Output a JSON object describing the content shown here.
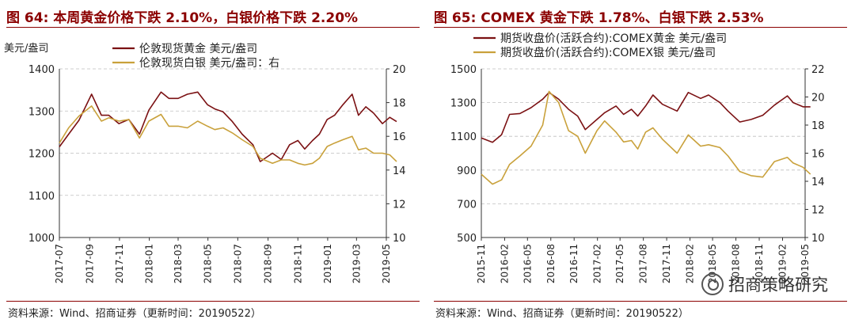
{
  "left": {
    "title": "图 64: 本周黄金价格下跌 2.10%，白银价格下跌 2.20%",
    "source": "资料来源：Wind、招商证券（更新时间：20190522）",
    "chart_data": {
      "type": "line",
      "ylabel_left": "美元/盎司",
      "yleft_range": [
        1000,
        1400
      ],
      "yleft_ticks": [
        "1000",
        "1100",
        "1200",
        "1300",
        "1400"
      ],
      "yright_range": [
        10,
        20
      ],
      "yright_ticks": [
        "10",
        "12",
        "14",
        "16",
        "18",
        "20"
      ],
      "x_ticks": [
        "2017-07",
        "2017-09",
        "2017-11",
        "2018-01",
        "2018-03",
        "2018-05",
        "2018-07",
        "2018-09",
        "2018-11",
        "2019-01",
        "2019-03",
        "2019-05"
      ],
      "x_range": [
        "2017-07",
        "2019-05"
      ],
      "grid": "horizontal-dashed",
      "legend_position": "top-center",
      "colors": {
        "gold": "#7B1113",
        "silver": "#C9A13B"
      },
      "series": [
        {
          "name": "伦敦现货黄金  美元/盎司",
          "axis": "left",
          "color": "#7B1113",
          "x": [
            "2017-07-01",
            "2017-07-20",
            "2017-08-10",
            "2017-09-05",
            "2017-09-25",
            "2017-10-10",
            "2017-10-31",
            "2017-11-20",
            "2017-12-12",
            "2017-12-31",
            "2018-01-25",
            "2018-02-10",
            "2018-03-01",
            "2018-03-20",
            "2018-04-10",
            "2018-04-30",
            "2018-05-15",
            "2018-06-01",
            "2018-06-20",
            "2018-07-10",
            "2018-08-01",
            "2018-08-16",
            "2018-09-10",
            "2018-09-28",
            "2018-10-15",
            "2018-11-01",
            "2018-11-15",
            "2018-12-01",
            "2018-12-15",
            "2018-12-31",
            "2019-01-15",
            "2019-02-01",
            "2019-02-20",
            "2019-03-05",
            "2019-03-20",
            "2019-04-05",
            "2019-04-23",
            "2019-05-08",
            "2019-05-22"
          ],
          "values": [
            1215,
            1245,
            1278,
            1340,
            1290,
            1290,
            1270,
            1280,
            1245,
            1302,
            1345,
            1330,
            1330,
            1340,
            1345,
            1315,
            1305,
            1298,
            1275,
            1245,
            1220,
            1180,
            1200,
            1185,
            1220,
            1230,
            1210,
            1230,
            1245,
            1280,
            1290,
            1315,
            1340,
            1290,
            1310,
            1295,
            1270,
            1285,
            1275
          ]
        },
        {
          "name": "伦敦现货白银  美元/盎司：右",
          "axis": "right",
          "color": "#C9A13B",
          "x": [
            "2017-07-01",
            "2017-07-20",
            "2017-08-10",
            "2017-09-05",
            "2017-09-25",
            "2017-10-10",
            "2017-10-31",
            "2017-11-20",
            "2017-12-12",
            "2017-12-31",
            "2018-01-25",
            "2018-02-10",
            "2018-03-01",
            "2018-03-20",
            "2018-04-10",
            "2018-04-30",
            "2018-05-15",
            "2018-06-01",
            "2018-06-20",
            "2018-07-10",
            "2018-08-01",
            "2018-08-16",
            "2018-09-10",
            "2018-09-28",
            "2018-10-15",
            "2018-11-01",
            "2018-11-15",
            "2018-12-01",
            "2018-12-15",
            "2018-12-31",
            "2019-01-15",
            "2019-02-01",
            "2019-02-20",
            "2019-03-05",
            "2019-03-20",
            "2019-04-05",
            "2019-04-23",
            "2019-05-08",
            "2019-05-22"
          ],
          "values": [
            15.6,
            16.5,
            17.2,
            17.8,
            16.9,
            17.1,
            16.9,
            17.0,
            15.9,
            16.9,
            17.3,
            16.6,
            16.6,
            16.5,
            16.9,
            16.6,
            16.4,
            16.5,
            16.2,
            15.8,
            15.4,
            14.7,
            14.4,
            14.6,
            14.6,
            14.4,
            14.3,
            14.4,
            14.7,
            15.4,
            15.6,
            15.8,
            16.0,
            15.2,
            15.3,
            15.0,
            15.0,
            14.9,
            14.5
          ]
        }
      ]
    }
  },
  "right": {
    "title": "图 65:  COMEX 黄金下跌 1.78%、白银下跌 2.53%",
    "source": "资料来源：Wind、招商证券（更新时间：20190522）",
    "watermark": "招商策略研究",
    "chart_data": {
      "type": "line",
      "yleft_range": [
        500,
        1500
      ],
      "yleft_ticks": [
        "500",
        "700",
        "900",
        "1100",
        "1300",
        "1500"
      ],
      "yright_range": [
        10,
        22
      ],
      "yright_ticks": [
        "10",
        "12",
        "14",
        "16",
        "18",
        "20",
        "22"
      ],
      "x_ticks": [
        "2015-11",
        "2016-02",
        "2016-05",
        "2016-08",
        "2016-11",
        "2017-02",
        "2017-05",
        "2017-08",
        "2017-11",
        "2018-02",
        "2018-05",
        "2018-08",
        "2018-11",
        "2019-02",
        "2019-05"
      ],
      "x_range": [
        "2015-11",
        "2019-05"
      ],
      "grid": "horizontal-dashed",
      "legend_position": "top-center",
      "colors": {
        "gold": "#7B1113",
        "silver": "#C9A13B"
      },
      "series": [
        {
          "name": "期货收盘价(活跃合约):COMEX黄金  美元/盎司",
          "axis": "left",
          "color": "#7B1113",
          "x": [
            "2015-11-01",
            "2015-12-15",
            "2016-01-20",
            "2016-02-20",
            "2016-04-01",
            "2016-05-15",
            "2016-06-30",
            "2016-07-25",
            "2016-09-01",
            "2016-10-10",
            "2016-11-15",
            "2016-12-15",
            "2017-01-30",
            "2017-03-01",
            "2017-04-15",
            "2017-05-15",
            "2017-06-15",
            "2017-07-10",
            "2017-08-10",
            "2017-09-08",
            "2017-10-15",
            "2017-12-12",
            "2018-01-25",
            "2018-03-15",
            "2018-04-15",
            "2018-05-30",
            "2018-07-01",
            "2018-08-16",
            "2018-09-30",
            "2018-11-15",
            "2018-12-31",
            "2019-02-20",
            "2019-03-15",
            "2019-04-23",
            "2019-05-22"
          ],
          "values": [
            1090,
            1065,
            1110,
            1230,
            1235,
            1270,
            1320,
            1360,
            1320,
            1260,
            1220,
            1140,
            1200,
            1240,
            1280,
            1230,
            1260,
            1220,
            1280,
            1345,
            1290,
            1250,
            1360,
            1325,
            1345,
            1300,
            1250,
            1185,
            1200,
            1225,
            1285,
            1340,
            1300,
            1275,
            1275
          ]
        },
        {
          "name": "期货收盘价(活跃合约):COMEX银  美元/盎司",
          "axis": "right",
          "color": "#C9A13B",
          "x": [
            "2015-11-01",
            "2015-12-15",
            "2016-01-20",
            "2016-02-20",
            "2016-04-01",
            "2016-05-15",
            "2016-06-30",
            "2016-07-25",
            "2016-09-01",
            "2016-10-10",
            "2016-11-15",
            "2016-12-15",
            "2017-01-30",
            "2017-03-01",
            "2017-04-15",
            "2017-05-15",
            "2017-06-15",
            "2017-07-10",
            "2017-08-10",
            "2017-09-08",
            "2017-10-15",
            "2017-12-12",
            "2018-01-25",
            "2018-03-15",
            "2018-04-15",
            "2018-05-30",
            "2018-07-01",
            "2018-08-16",
            "2018-09-30",
            "2018-11-15",
            "2018-12-31",
            "2019-02-20",
            "2019-03-15",
            "2019-04-23",
            "2019-05-22"
          ],
          "values": [
            14.5,
            13.8,
            14.1,
            15.2,
            15.8,
            16.5,
            18.0,
            20.4,
            19.6,
            17.6,
            17.2,
            16.0,
            17.6,
            18.3,
            17.5,
            16.8,
            16.9,
            16.3,
            17.5,
            17.8,
            17.0,
            16.0,
            17.3,
            16.5,
            16.6,
            16.4,
            15.8,
            14.7,
            14.4,
            14.3,
            15.4,
            15.7,
            15.3,
            15.0,
            14.5
          ]
        }
      ]
    }
  }
}
